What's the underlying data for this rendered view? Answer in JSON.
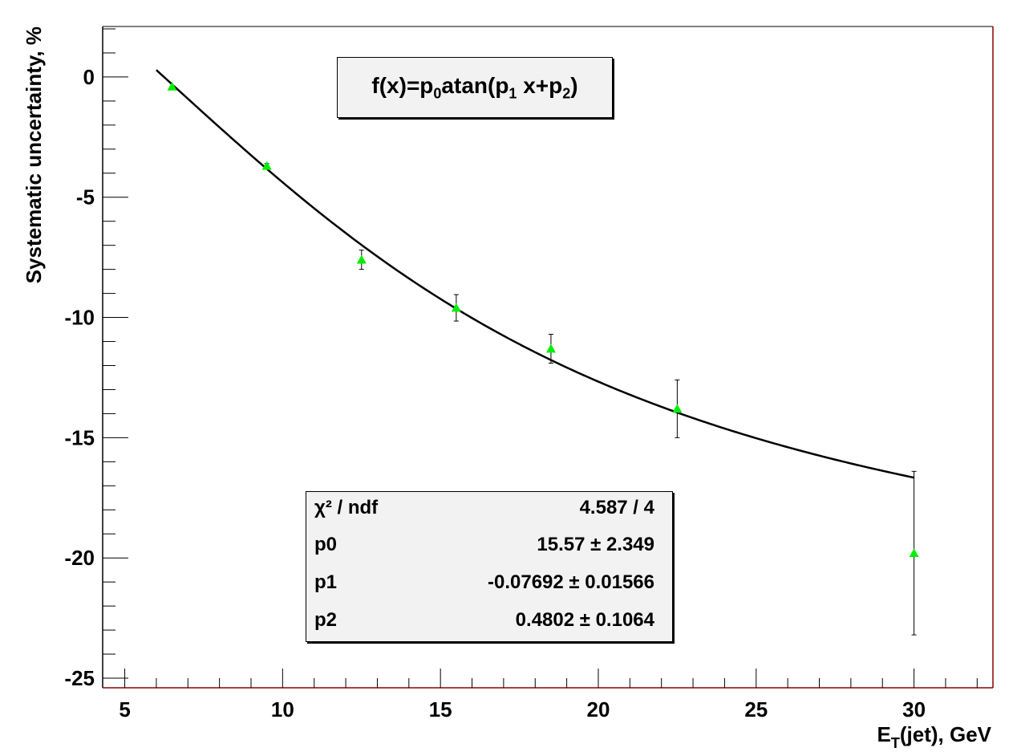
{
  "chart_data": {
    "type": "scatter",
    "xlabel_main": "E",
    "xlabel_sub": "T",
    "xlabel_rest": "(jet), GeV",
    "ylabel": "Systematic uncertainty, %",
    "xlim": [
      4.3,
      32.5
    ],
    "ylim": [
      -25.4,
      2.1
    ],
    "xticks": [
      5,
      10,
      15,
      20,
      25,
      30
    ],
    "yticks": [
      0,
      -5,
      -10,
      -15,
      -20,
      -25
    ],
    "xtick_labels": [
      "5",
      "10",
      "15",
      "20",
      "25",
      "30"
    ],
    "ytick_labels": [
      "0",
      "-5",
      "-10",
      "-15",
      "-20",
      "-25"
    ],
    "marker_color": "#00ee00",
    "points": [
      {
        "x": 6.5,
        "y": -0.4,
        "err": 0.0
      },
      {
        "x": 9.5,
        "y": -3.7,
        "err": 0.1
      },
      {
        "x": 12.5,
        "y": -7.6,
        "err": 0.4
      },
      {
        "x": 15.5,
        "y": -9.6,
        "err": 0.55
      },
      {
        "x": 18.5,
        "y": -11.3,
        "err": 0.6
      },
      {
        "x": 22.5,
        "y": -13.8,
        "err": 1.2
      },
      {
        "x": 30.0,
        "y": -19.8,
        "err": 3.4
      }
    ],
    "fit": {
      "p0": 15.57,
      "p1": -0.07692,
      "p2": 0.4802,
      "x_range": [
        6.0,
        30.0
      ]
    }
  },
  "formula": {
    "prefix": "f(x)=p",
    "sub0": "0",
    "mid": "atan(p",
    "sub1": "1",
    "mid2": " x+p",
    "sub2": "2",
    "suffix": ")"
  },
  "stats": [
    {
      "name": "χ² / ndf",
      "value": "4.587 / 4"
    },
    {
      "name": "p0",
      "value": "15.57 ± 2.349"
    },
    {
      "name": "p1",
      "value": "-0.07692 ± 0.01566"
    },
    {
      "name": "p2",
      "value": "0.4802 ± 0.1064"
    }
  ]
}
